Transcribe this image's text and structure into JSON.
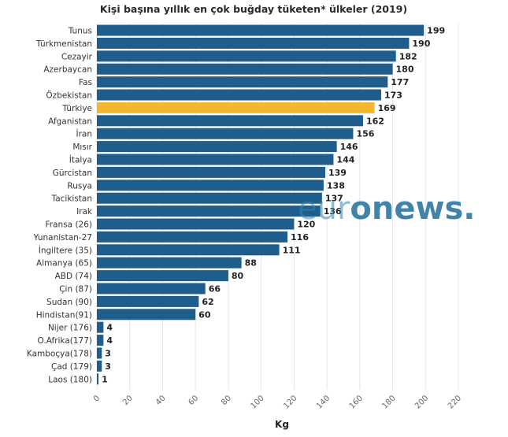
{
  "chart_data": {
    "type": "bar",
    "orientation": "horizontal",
    "title": "Kişi başına yıllık en çok buğday tüketen* ülkeler (2019)",
    "xlabel": "Kg",
    "ylabel": "",
    "xlim": [
      0,
      220
    ],
    "xticks": [
      0,
      20,
      40,
      60,
      80,
      100,
      120,
      140,
      160,
      180,
      200,
      220
    ],
    "grid": true,
    "categories": [
      "Tunus",
      "Türkmenistan",
      "Cezayir",
      "Azerbaycan",
      "Fas",
      "Özbekistan",
      "Türkiye",
      "Afganistan",
      "İran",
      "Mısır",
      "İtalya",
      "Gürcistan",
      "Rusya",
      "Tacikistan",
      "Irak",
      "Fransa (26)",
      "Yunanistan-27",
      "İngiltere (35)",
      "Almanya (65)",
      "ABD (74)",
      "Çin (87)",
      "Sudan (90)",
      "Hindistan(91)",
      "Nijer (176)",
      "O.Afrika(177)",
      "Kamboçya(178)",
      "Çad (179)",
      "Laos (180)"
    ],
    "values": [
      199,
      190,
      182,
      180,
      177,
      173,
      169,
      162,
      156,
      146,
      144,
      139,
      138,
      137,
      136,
      120,
      116,
      111,
      88,
      80,
      66,
      62,
      60,
      4,
      4,
      3,
      3,
      1
    ],
    "highlight_category": "Türkiye",
    "colors": {
      "bar": "#1f5d8c",
      "highlight": "#f5b730"
    }
  },
  "watermark": {
    "light": "eur",
    "bold": "onews."
  }
}
